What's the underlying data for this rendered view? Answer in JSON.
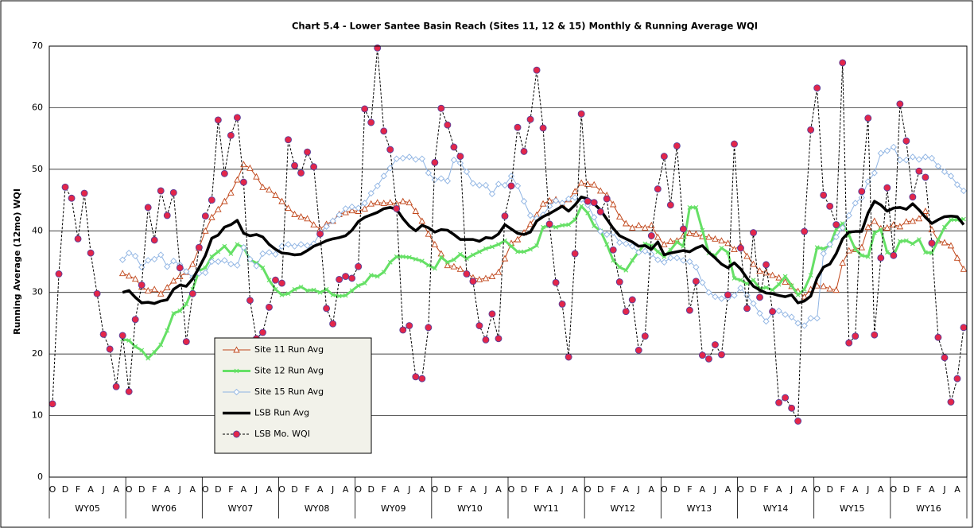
{
  "chart_data": {
    "type": "line",
    "title": "Chart 5.4 -  Lower Santee Basin Reach (Sites 11, 12 & 15) Monthly & Running Average WQI",
    "y_label": "Running Average (12mo) WQI",
    "categories": [
      "O",
      null,
      "D",
      null,
      "F",
      null,
      "A",
      null,
      "J",
      null,
      "A",
      null,
      "O",
      null,
      "D",
      null,
      "F",
      null,
      "A",
      null,
      "J",
      null,
      "A",
      null,
      "O",
      null,
      "D",
      null,
      "F",
      null,
      "A",
      null,
      "J",
      null,
      "A",
      null,
      "O",
      null,
      "D",
      null,
      "F",
      null,
      "A",
      null,
      "J",
      null,
      "A",
      null,
      "O",
      null,
      "D",
      null,
      "F",
      null,
      "A",
      null,
      "J",
      null,
      "A",
      null,
      "O",
      null,
      "D",
      null,
      "F",
      null,
      "A",
      null,
      "J",
      null,
      "A",
      null,
      "O",
      null,
      "D",
      null,
      "F",
      null,
      "A",
      null,
      "J",
      null,
      "A",
      null,
      "O",
      null,
      "D",
      null,
      "F",
      null,
      "A",
      null,
      "J",
      null,
      "A",
      null,
      "O",
      null,
      "D",
      null,
      "F",
      null,
      "A",
      null,
      "J",
      null,
      "A",
      null,
      "O",
      null,
      "D",
      null,
      "F",
      null,
      "A",
      null,
      "J",
      null,
      "A",
      null,
      "O",
      null,
      "D",
      null,
      "F",
      null,
      "A",
      null,
      "J",
      null,
      "A",
      null,
      "O",
      null,
      "D",
      null,
      "F",
      null,
      "A",
      null,
      "J",
      null,
      "A",
      null
    ],
    "groups": [
      "WY05",
      "WY06",
      "WY07",
      "WY08",
      "WY09",
      "WY10",
      "WY11",
      "WY12",
      "WY13",
      "WY14",
      "WY15",
      "WY16"
    ],
    "ylim": [
      0,
      70
    ],
    "yticks": [
      0,
      10,
      20,
      30,
      40,
      50,
      60,
      70
    ],
    "grid": true,
    "series": [
      {
        "name": "Site 11 Run Avg",
        "color": "#c0461a",
        "marker": "triangle",
        "line_style": "solid",
        "line_width": 1,
        "values": [
          null,
          null,
          null,
          null,
          null,
          null,
          null,
          null,
          null,
          null,
          null,
          33.1,
          32.7,
          32.2,
          30.9,
          30.3,
          30.5,
          29.8,
          30.8,
          31.9,
          32.6,
          33.3,
          34.6,
          37.2,
          40.0,
          42.2,
          43.5,
          44.8,
          46.2,
          48.3,
          50.8,
          50.2,
          48.8,
          47.1,
          46.7,
          45.8,
          44.8,
          43.7,
          42.7,
          42.3,
          42.0,
          41.0,
          40.3,
          41.1,
          41.6,
          42.7,
          43.0,
          43.3,
          43.2,
          43.6,
          44.4,
          44.6,
          44.5,
          44.6,
          44.4,
          44.8,
          44.6,
          43.2,
          41.6,
          39.5,
          37.8,
          36.3,
          34.4,
          34.2,
          33.8,
          33.2,
          32.4,
          32.1,
          32.3,
          32.6,
          33.3,
          35.5,
          38.0,
          38.6,
          39.7,
          41.1,
          42.6,
          44.4,
          44.9,
          45.1,
          44.3,
          45.1,
          46.4,
          47.8,
          47.6,
          47.5,
          46.5,
          45.8,
          44.3,
          42.3,
          41.2,
          40.5,
          40.9,
          40.5,
          40.9,
          39.0,
          37.8,
          38.3,
          38.4,
          39.2,
          39.6,
          39.5,
          39.1,
          39.0,
          38.7,
          38.4,
          38.0,
          37.0,
          37.6,
          35.9,
          34.6,
          33.5,
          33.2,
          32.8,
          32.4,
          31.7,
          31.0,
          30.2,
          29.3,
          30.5,
          31.1,
          31.0,
          30.6,
          30.4,
          34.8,
          36.8,
          37.0,
          37.3,
          40.6,
          41.6,
          40.4,
          40.5,
          41.0,
          40.7,
          41.5,
          41.6,
          42.0,
          43.2,
          40.2,
          38.4,
          38.1,
          37.6,
          35.6,
          33.8
        ]
      },
      {
        "name": "Site 12 Run Avg",
        "color": "#66e066",
        "marker": "cross",
        "line_style": "solid",
        "line_width": 3,
        "values": [
          null,
          null,
          null,
          null,
          null,
          null,
          null,
          null,
          null,
          null,
          null,
          22.4,
          22.2,
          21.2,
          20.6,
          19.3,
          20.3,
          21.5,
          23.8,
          26.6,
          27.0,
          28.1,
          30.5,
          33.5,
          34.0,
          35.8,
          36.6,
          37.5,
          36.3,
          37.8,
          37.3,
          35.3,
          34.8,
          34.0,
          32.0,
          30.5,
          29.6,
          29.8,
          30.5,
          30.9,
          30.3,
          30.4,
          30.0,
          30.5,
          29.6,
          29.4,
          29.5,
          30.3,
          31.1,
          31.5,
          32.8,
          32.6,
          33.3,
          34.9,
          35.8,
          35.8,
          35.7,
          35.4,
          35.1,
          34.4,
          33.9,
          35.7,
          34.9,
          35.3,
          36.2,
          35.5,
          36.1,
          36.6,
          37.1,
          37.4,
          37.8,
          38.4,
          37.5,
          36.6,
          36.6,
          37.0,
          37.6,
          40.6,
          40.8,
          40.6,
          40.9,
          41.0,
          41.8,
          44.0,
          42.9,
          40.8,
          40.0,
          37.8,
          35.2,
          34.1,
          33.6,
          35.2,
          36.6,
          37.9,
          37.6,
          36.6,
          35.8,
          36.9,
          38.2,
          37.5,
          43.8,
          43.8,
          40.1,
          36.4,
          36.0,
          37.2,
          36.5,
          32.3,
          32.0,
          31.4,
          32.0,
          30.6,
          30.8,
          30.4,
          31.3,
          32.6,
          31.1,
          29.6,
          30.5,
          32.8,
          37.3,
          37.1,
          37.6,
          40.3,
          41.2,
          39.3,
          37.0,
          36.0,
          35.8,
          39.7,
          40.2,
          36.5,
          36.0,
          38.3,
          38.4,
          37.9,
          38.6,
          36.5,
          36.4,
          38.5,
          40.6,
          41.8,
          41.8,
          41.9
        ]
      },
      {
        "name": "Site 15 Run Avg",
        "color": "#8fb4e3",
        "marker": "diamond",
        "line_style": "solid",
        "line_width": 1,
        "values": [
          null,
          null,
          null,
          null,
          null,
          null,
          null,
          null,
          null,
          null,
          null,
          35.3,
          36.4,
          35.9,
          34.1,
          35.2,
          35.4,
          36.1,
          34.2,
          35.1,
          34.5,
          33.4,
          32.4,
          33.1,
          33.2,
          35.0,
          35.0,
          35.2,
          34.6,
          34.4,
          37.3,
          35.4,
          34.3,
          36.3,
          36.5,
          36.2,
          37.5,
          37.8,
          37.5,
          37.8,
          37.6,
          37.9,
          39.7,
          40.7,
          41.6,
          42.6,
          43.6,
          43.9,
          43.7,
          44.5,
          46.1,
          47.3,
          48.9,
          50.2,
          51.7,
          51.8,
          52.0,
          51.6,
          51.7,
          49.4,
          48.3,
          48.5,
          48.1,
          51.5,
          51.0,
          49.6,
          47.7,
          47.4,
          47.4,
          46.0,
          47.6,
          47.4,
          48.9,
          47.3,
          44.8,
          42.5,
          42.0,
          42.6,
          44.0,
          44.9,
          44.5,
          45.2,
          45.4,
          45.1,
          44.2,
          42.2,
          39.9,
          39.4,
          39.7,
          38.1,
          37.9,
          37.5,
          36.5,
          36.7,
          36.2,
          35.3,
          34.9,
          35.6,
          35.6,
          35.2,
          35.0,
          34.1,
          31.6,
          30.0,
          29.3,
          29.0,
          29.1,
          29.5,
          30.7,
          29.5,
          28.2,
          26.6,
          25.3,
          26.7,
          27.0,
          26.4,
          26.0,
          25.0,
          24.6,
          25.8,
          25.8,
          36.3,
          37.8,
          39.0,
          40.5,
          42.5,
          44.5,
          45.4,
          48.0,
          49.4,
          52.6,
          53.0,
          53.6,
          51.5,
          51.5,
          52.0,
          51.6,
          52.0,
          51.8,
          50.5,
          49.6,
          48.9,
          47.5,
          46.5
        ]
      },
      {
        "name": "LSB Run Avg",
        "color": "#000000",
        "marker": "none",
        "line_style": "solid",
        "line_width": 3.5,
        "values": [
          null,
          null,
          null,
          null,
          null,
          null,
          null,
          null,
          null,
          null,
          null,
          30.0,
          30.3,
          29.2,
          28.3,
          28.4,
          28.2,
          28.6,
          28.8,
          30.5,
          31.2,
          31.0,
          32.2,
          34.0,
          36.0,
          38.8,
          39.3,
          40.6,
          41.0,
          41.7,
          39.6,
          39.2,
          39.4,
          39.0,
          37.8,
          37.0,
          36.4,
          36.3,
          36.1,
          36.2,
          36.8,
          37.5,
          37.9,
          38.4,
          38.7,
          38.9,
          39.2,
          40.1,
          41.5,
          42.2,
          42.6,
          43.0,
          43.6,
          43.8,
          43.5,
          42.0,
          40.8,
          40.0,
          40.9,
          40.5,
          39.8,
          40.2,
          40.1,
          39.4,
          38.6,
          38.6,
          38.6,
          38.3,
          38.9,
          38.8,
          39.5,
          41.0,
          40.3,
          39.6,
          39.4,
          39.8,
          41.6,
          42.3,
          42.8,
          43.4,
          44.0,
          43.2,
          44.2,
          45.5,
          45.2,
          44.4,
          43.4,
          41.9,
          40.4,
          39.2,
          38.7,
          38.2,
          37.5,
          37.6,
          37.0,
          38.2,
          36.1,
          36.4,
          36.6,
          36.8,
          36.6,
          37.2,
          37.6,
          36.5,
          35.6,
          34.6,
          34.0,
          34.8,
          33.8,
          32.3,
          31.0,
          30.4,
          29.9,
          29.8,
          29.5,
          29.3,
          29.6,
          28.3,
          28.6,
          29.4,
          32.3,
          34.1,
          34.6,
          36.3,
          38.7,
          39.8,
          39.9,
          39.9,
          42.9,
          44.8,
          44.2,
          43.2,
          43.7,
          43.8,
          43.5,
          44.4,
          43.4,
          42.2,
          41.2,
          41.8,
          42.3,
          42.4,
          42.3,
          41.0
        ]
      },
      {
        "name": "LSB Mo. WQI",
        "color": "#000000",
        "marker": "circle",
        "marker_color": "#e3264a",
        "line_style": "dashed",
        "line_width": 1,
        "values": [
          11.9,
          33.0,
          47.1,
          45.3,
          38.7,
          46.1,
          36.4,
          29.8,
          23.2,
          20.8,
          14.7,
          23.0,
          13.9,
          25.6,
          31.2,
          43.8,
          38.5,
          46.5,
          42.5,
          46.2,
          34.0,
          22.0,
          29.8,
          37.3,
          42.4,
          45.0,
          58.0,
          49.3,
          55.5,
          58.4,
          47.9,
          28.7,
          22.5,
          23.5,
          27.6,
          32.0,
          31.5,
          54.8,
          50.6,
          49.4,
          52.8,
          50.4,
          39.5,
          27.4,
          24.9,
          32.1,
          32.6,
          32.3,
          34.2,
          59.8,
          57.6,
          69.7,
          56.2,
          53.2,
          43.6,
          23.9,
          24.6,
          16.3,
          16.0,
          24.3,
          51.1,
          59.9,
          57.2,
          53.6,
          52.1,
          33.0,
          31.8,
          24.6,
          22.3,
          26.5,
          22.5,
          42.4,
          47.3,
          56.8,
          52.9,
          58.1,
          66.1,
          56.7,
          41.1,
          31.6,
          28.1,
          19.5,
          36.3,
          59.0,
          44.8,
          44.6,
          43.1,
          45.2,
          36.9,
          31.7,
          26.9,
          28.8,
          20.6,
          22.9,
          39.2,
          46.8,
          52.1,
          44.2,
          53.8,
          40.3,
          27.1,
          31.8,
          19.8,
          19.2,
          21.5,
          19.9,
          29.6,
          54.1,
          37.2,
          27.4,
          39.7,
          29.2,
          34.5,
          26.9,
          12.1,
          12.9,
          11.2,
          9.1,
          39.9,
          56.4,
          63.2,
          45.8,
          44.0,
          41.0,
          67.3,
          21.8,
          22.9,
          46.4,
          58.3,
          23.1,
          35.6,
          47.0,
          36.0,
          60.6,
          54.6,
          45.5,
          49.7,
          48.7,
          38.0,
          22.7,
          19.4,
          12.2,
          16.0,
          24.3
        ]
      }
    ]
  }
}
